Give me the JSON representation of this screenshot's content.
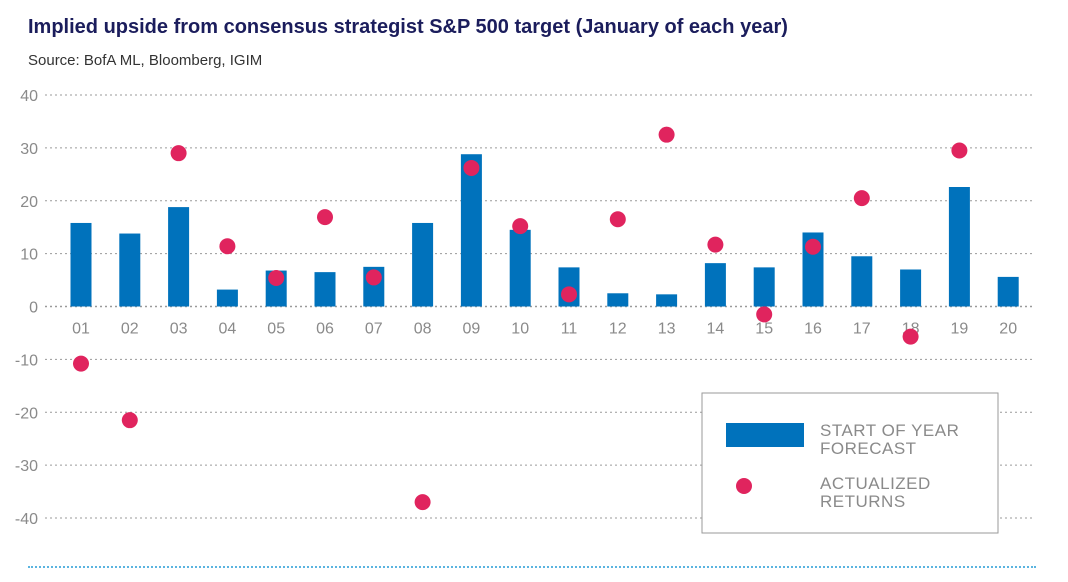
{
  "title": "Implied upside from consensus strategist S&P 500 target (January of each year)",
  "source": "Source: BofA ML, Bloomberg, IGIM",
  "colors": {
    "forecast": "#0072bc",
    "actual": "#e0245e",
    "title": "#1b1d5c",
    "grid": "#9a9a9a",
    "tick": "#8a8a8a",
    "legend_text": "#8a8a8a"
  },
  "chart_data": {
    "type": "bar",
    "categories": [
      "01",
      "02",
      "03",
      "04",
      "05",
      "06",
      "07",
      "08",
      "09",
      "10",
      "11",
      "12",
      "13",
      "14",
      "15",
      "16",
      "17",
      "18",
      "19",
      "20"
    ],
    "series": [
      {
        "name": "START OF YEAR FORECAST",
        "kind": "bar",
        "values": [
          15.8,
          13.8,
          18.8,
          3.2,
          6.8,
          6.5,
          7.5,
          15.8,
          28.8,
          14.5,
          7.4,
          2.5,
          2.3,
          8.2,
          7.4,
          14.0,
          9.5,
          7.0,
          22.6,
          5.6
        ]
      },
      {
        "name": "ACTUALIZED RETURNS",
        "kind": "scatter",
        "values": [
          -10.8,
          -21.5,
          29.0,
          11.4,
          5.4,
          16.9,
          5.5,
          -37.0,
          26.2,
          15.2,
          2.3,
          16.5,
          32.5,
          11.7,
          -1.5,
          11.3,
          20.5,
          -5.7,
          29.5,
          null
        ]
      }
    ],
    "ylim": [
      -40,
      40
    ],
    "yticks": [
      40,
      30,
      20,
      10,
      0,
      -10,
      -20,
      -30,
      -40
    ],
    "ytick_labels": [
      "40",
      "30",
      "20",
      "10",
      "0",
      "-10",
      "-20",
      "-30",
      "-40"
    ],
    "grid": true,
    "legend": {
      "position": "bottom-right",
      "items": [
        [
          "START OF YEAR",
          "FORECAST"
        ],
        [
          "ACTUALIZED",
          "RETURNS"
        ]
      ]
    }
  }
}
